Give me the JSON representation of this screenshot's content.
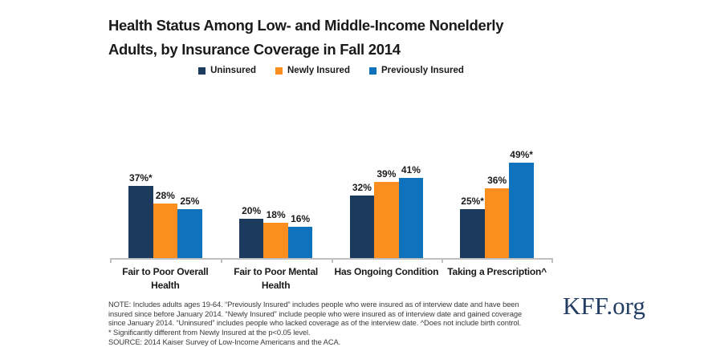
{
  "header": {
    "title_lines": [
      "Health Status Among Low- and Middle-Income Nonelderly",
      "Adults, by Insurance Coverage in Fall 2014"
    ]
  },
  "legend": {
    "position": "top",
    "items": [
      {
        "label": "Uninsured",
        "color": "#1B3A5E"
      },
      {
        "label": "Newly Insured",
        "color": "#FB8E1E"
      },
      {
        "label": "Previously Insured",
        "color": "#0E72BC"
      }
    ]
  },
  "chart_data": {
    "type": "bar",
    "title": "Health Status Among Low- and Middle-Income Nonelderly Adults, by Insurance Coverage in Fall 2014",
    "categories": [
      "Fair to Poor Overall Health",
      "Fair to Poor Mental Health",
      "Has Ongoing Condition",
      "Taking a Prescription^"
    ],
    "category_lines": [
      [
        "Fair to Poor Overall",
        "Health"
      ],
      [
        "Fair to Poor Mental",
        "Health"
      ],
      [
        "Has Ongoing Condition"
      ],
      [
        "Taking a Prescription^"
      ]
    ],
    "series": [
      {
        "name": "Uninsured",
        "color": "#1B3A5E",
        "values": [
          37,
          20,
          32,
          25
        ],
        "labels": [
          "37%*",
          "20%",
          "32%",
          "25%*"
        ]
      },
      {
        "name": "Newly Insured",
        "color": "#FB8E1E",
        "values": [
          28,
          18,
          39,
          36
        ],
        "labels": [
          "28%",
          "18%",
          "39%",
          "36%"
        ]
      },
      {
        "name": "Previously Insured",
        "color": "#0E72BC",
        "values": [
          25,
          16,
          41,
          49
        ],
        "labels": [
          "25%",
          "16%",
          "41%",
          "49%*"
        ]
      }
    ],
    "xlabel": "",
    "ylabel": "",
    "ylim": [
      0,
      55
    ],
    "value_axis": "hidden",
    "grid": false,
    "value_labels_shown": true,
    "axis_color": "#BFBFBF"
  },
  "notes": {
    "lines": [
      "NOTE: Includes adults ages 19-64. “Previously Insured” includes people who were insured as of interview date and have been",
      "insured since before January 2014. “Newly Insured” include people who were insured as of interview date and gained coverage",
      "since January 2014. “Uninsured” includes people who lacked coverage as of the interview date. ^Does not include birth control.",
      "* Significantly different from Newly Insured at the p<0.05 level.",
      "SOURCE: 2014 Kaiser Survey of Low-Income Americans and the ACA."
    ]
  },
  "footer": {
    "logo": "KFF.org"
  }
}
